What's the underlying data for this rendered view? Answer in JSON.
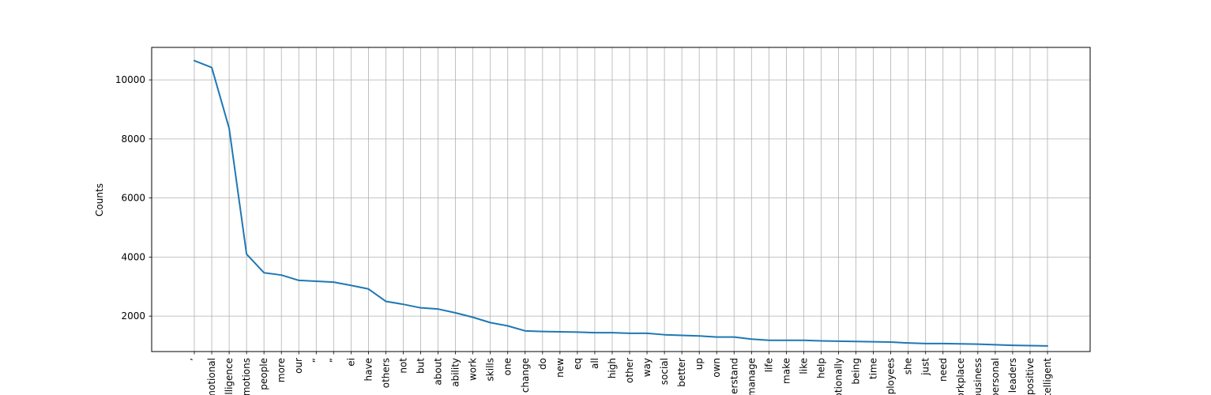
{
  "chart_data": {
    "type": "line",
    "title": "",
    "xlabel": "",
    "ylabel": "Counts",
    "ylim": [
      800,
      11100
    ],
    "yticks": [
      2000,
      4000,
      6000,
      8000,
      10000
    ],
    "yticklabels": [
      "2000",
      "4000",
      "6000",
      "8000",
      "10000"
    ],
    "grid": true,
    "legend": "none",
    "line_color": "#1f77b4",
    "grid_color": "#b0b0b0",
    "categories": [
      "’",
      "emotional",
      "intelligence",
      "emotions",
      "people",
      "more",
      "our",
      "“",
      "”",
      "ei",
      "have",
      "others",
      "not",
      "but",
      "about",
      "ability",
      "work",
      "skills",
      "one",
      "change",
      "do",
      "new",
      "eq",
      "all",
      "high",
      "other",
      "way",
      "social",
      "better",
      "up",
      "own",
      "understand",
      "manage",
      "life",
      "make",
      "like",
      "help",
      "emotionally",
      "being",
      "time",
      "employees",
      "she",
      "just",
      "need",
      "workplace",
      "business",
      "personal",
      "leaders",
      "positive",
      "intelligent"
    ],
    "values": [
      10650,
      10420,
      8360,
      4100,
      3470,
      3390,
      3210,
      3180,
      3150,
      3040,
      2920,
      2500,
      2400,
      2280,
      2240,
      2110,
      1960,
      1780,
      1670,
      1500,
      1480,
      1470,
      1460,
      1440,
      1440,
      1420,
      1420,
      1370,
      1350,
      1330,
      1290,
      1290,
      1220,
      1180,
      1180,
      1180,
      1160,
      1150,
      1140,
      1130,
      1120,
      1090,
      1070,
      1070,
      1060,
      1050,
      1030,
      1010,
      1000,
      990
    ]
  }
}
